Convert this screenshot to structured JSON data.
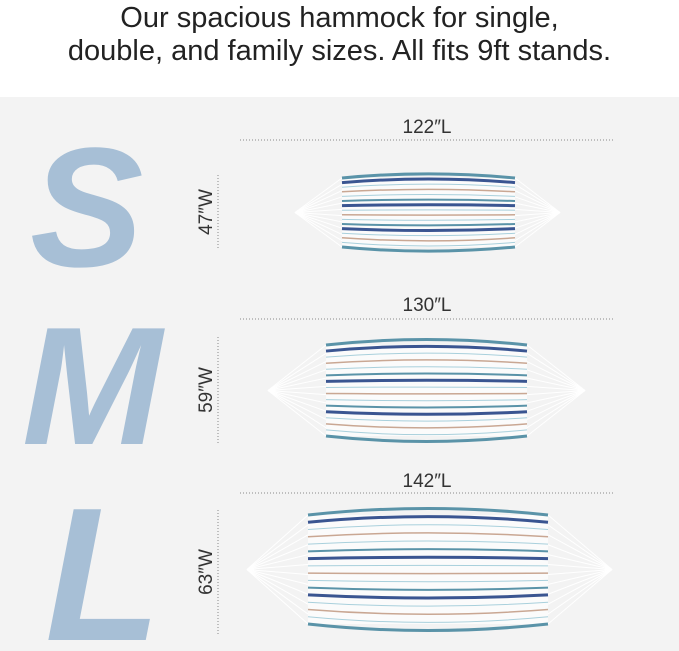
{
  "headline": {
    "line1": "Our spacious hammock for single,",
    "line2": "double, and family sizes. All fits 9ft stands."
  },
  "sizes": [
    {
      "letter": "S",
      "length": "122″L",
      "width": "47″W"
    },
    {
      "letter": "M",
      "length": "130″L",
      "width": "59″W"
    },
    {
      "letter": "L",
      "length": "142″L",
      "width": "63″W"
    }
  ],
  "colors": {
    "letter": "#a7bfd6",
    "stripe_teal": "#5a93a8",
    "stripe_navy": "#3a5591",
    "stripe_tan": "#c9a793",
    "stripe_light": "#a9d0dc",
    "background": "#f3f3f3"
  }
}
